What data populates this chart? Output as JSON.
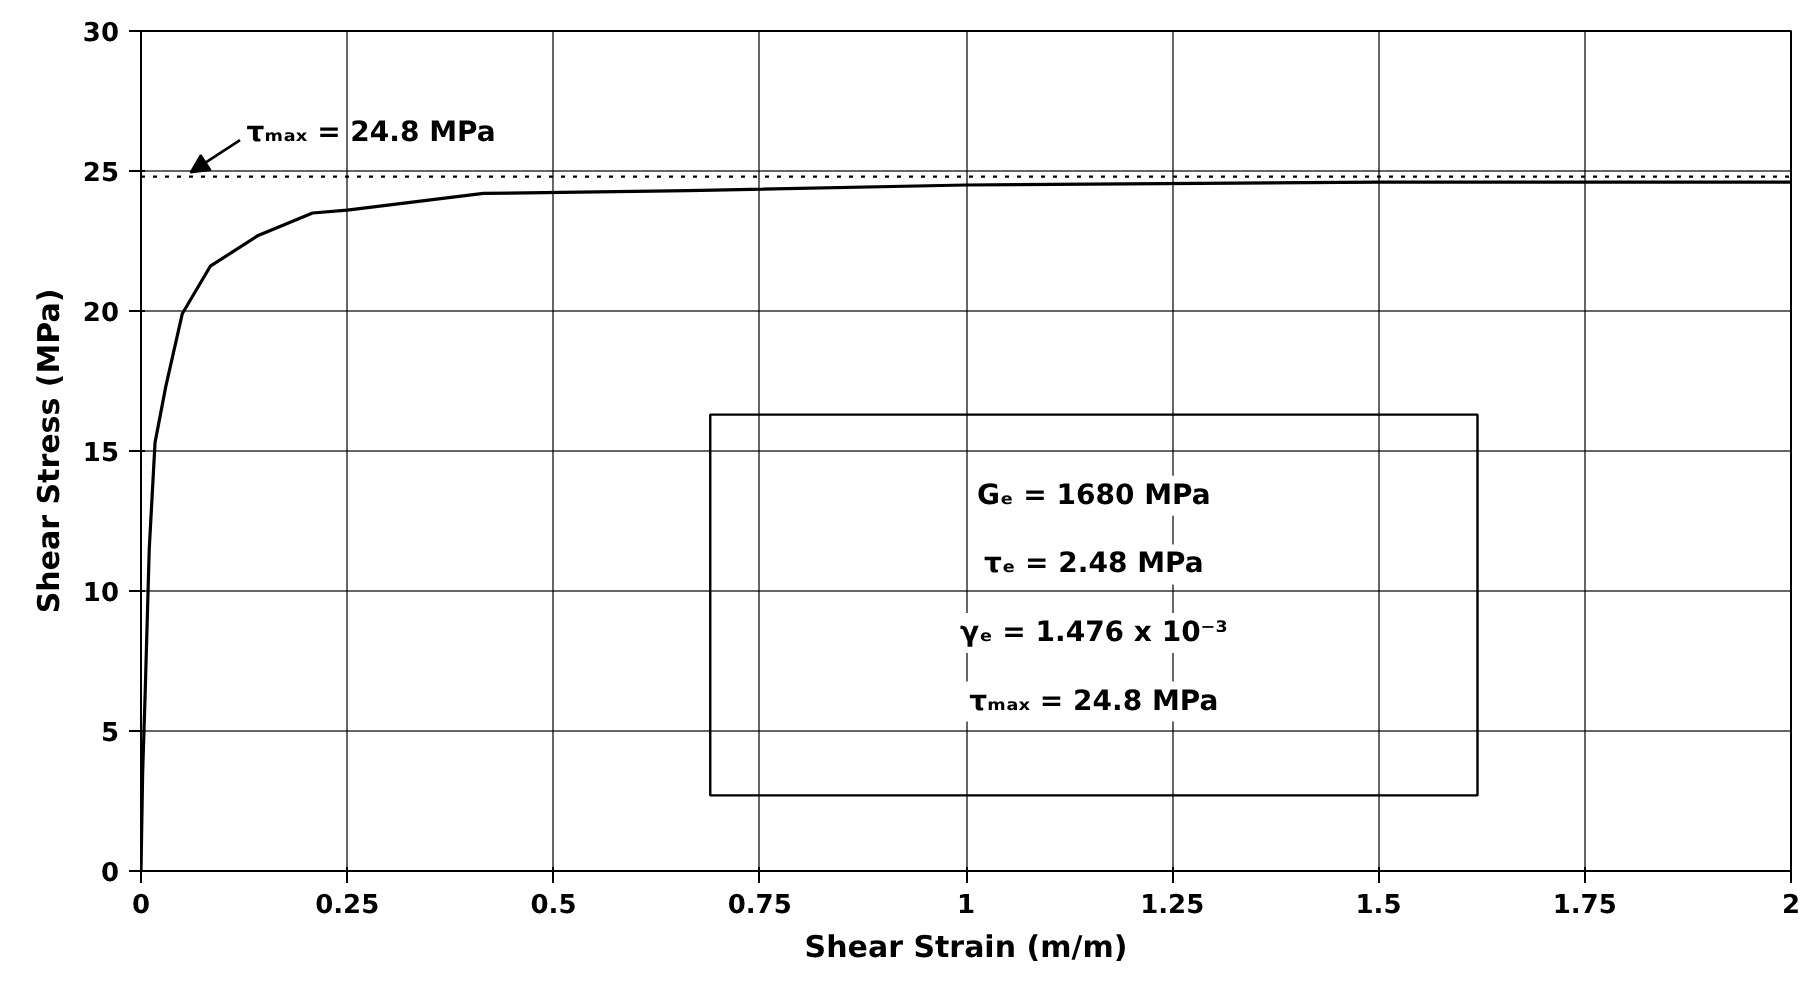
{
  "chart_data": {
    "type": "line",
    "xlabel": "Shear Strain (m/m)",
    "ylabel": "Shear Stress (MPa)",
    "x": [
      0,
      0.002,
      0.005,
      0.01,
      0.017,
      0.03,
      0.05,
      0.084,
      0.142,
      0.208,
      0.25,
      0.415,
      0.663,
      1.0,
      1.5,
      2.0
    ],
    "series": [
      {
        "color": "#000000",
        "values": [
          0,
          3.5,
          6.3,
          11.5,
          15.3,
          17.3,
          19.9,
          21.6,
          22.7,
          23.5,
          23.6,
          24.2,
          24.3,
          24.5,
          24.6,
          24.6
        ]
      }
    ],
    "xlim": [
      0,
      2
    ],
    "ylim": [
      0,
      30
    ],
    "xticks": [
      0,
      0.25,
      0.5,
      0.75,
      1,
      1.25,
      1.5,
      1.75,
      2
    ],
    "yticks": [
      0,
      5,
      10,
      15,
      20,
      25,
      30
    ],
    "grid": true,
    "marker": "none",
    "line_style": "solid",
    "ref_lines": [
      {
        "axis": "y",
        "value": 24.8,
        "line_style": "dotted",
        "color": "#000000"
      }
    ],
    "annotations": [
      {
        "text": "τₘₐₓ = 24.8 MPa",
        "x": 0.06,
        "y": 24.8
      },
      "Gₑ = 1680 MPa\nτₑ = 2.48 MPa\nγₑ = 1.476 x 10⁻³\nτₘₐₓ = 24.8 MPa"
    ]
  }
}
